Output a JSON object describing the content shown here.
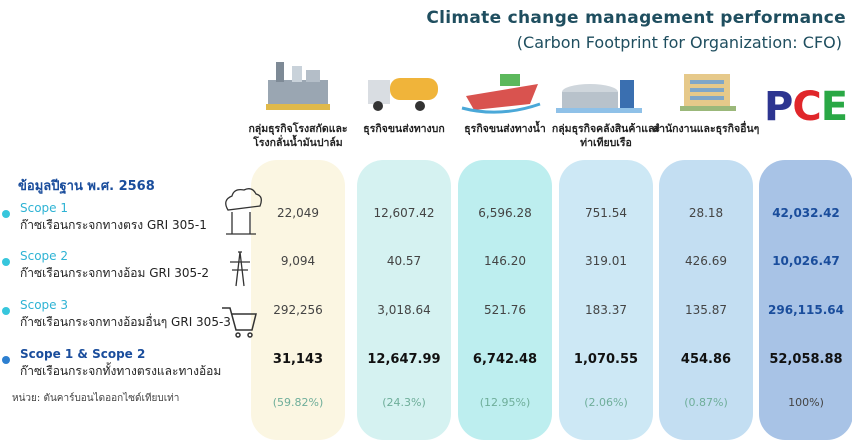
{
  "title": "Climate change management performance",
  "subtitle": "(Carbon Footprint for Organization: CFO)",
  "columns": [
    "กลุ่มธุรกิจโรงสกัดและโรงกลั่นน้ำมันปาล์ม",
    "ธุรกิจขนส่งทางบก",
    "ธุรกิจขนส่งทางน้ำ",
    "กลุ่มธุรกิจคลังสินค้าและท่าเทียบเรือ",
    "สำนักงานและธุรกิจอื่นๆ"
  ],
  "logo": [
    "P",
    "C",
    "E"
  ],
  "base_year": "ข้อมูลปีฐาน พ.ศ. 2568",
  "rows": [
    {
      "scope": "Scope 1",
      "description": "ก๊าซเรือนกระจกทางตรง GRI 305-1",
      "values": [
        "22,049",
        "12,607.42",
        "6,596.28",
        "751.54",
        "28.18",
        "42,032.42"
      ]
    },
    {
      "scope": "Scope 2",
      "description": "ก๊าซเรือนกระจกทางอ้อม GRI 305-2",
      "values": [
        "9,094",
        "40.57",
        "146.20",
        "319.01",
        "426.69",
        "10,026.47"
      ]
    },
    {
      "scope": "Scope 3",
      "description": "ก๊าซเรือนกระจกทางอ้อมอื่นๆ GRI 305-3",
      "values": [
        "292,256",
        "3,018.64",
        "521.76",
        "183.37",
        "135.87",
        "296,115.64"
      ]
    },
    {
      "scope": "Scope 1 & Scope 2",
      "description": "ก๊าซเรือนกระจกทั้งทางตรงและทางอ้อม",
      "values": [
        "31,143",
        "12,647.99",
        "6,742.48",
        "1,070.55",
        "454.86",
        "52,058.88"
      ]
    }
  ],
  "unit_note": "หน่วย: ตันคาร์บอนไดออกไซด์เทียบเท่า",
  "shares": [
    "(59.82%)",
    "(24.3%)",
    "(12.95%)",
    "(2.06%)",
    "(0.87%)",
    "100%)"
  ]
}
